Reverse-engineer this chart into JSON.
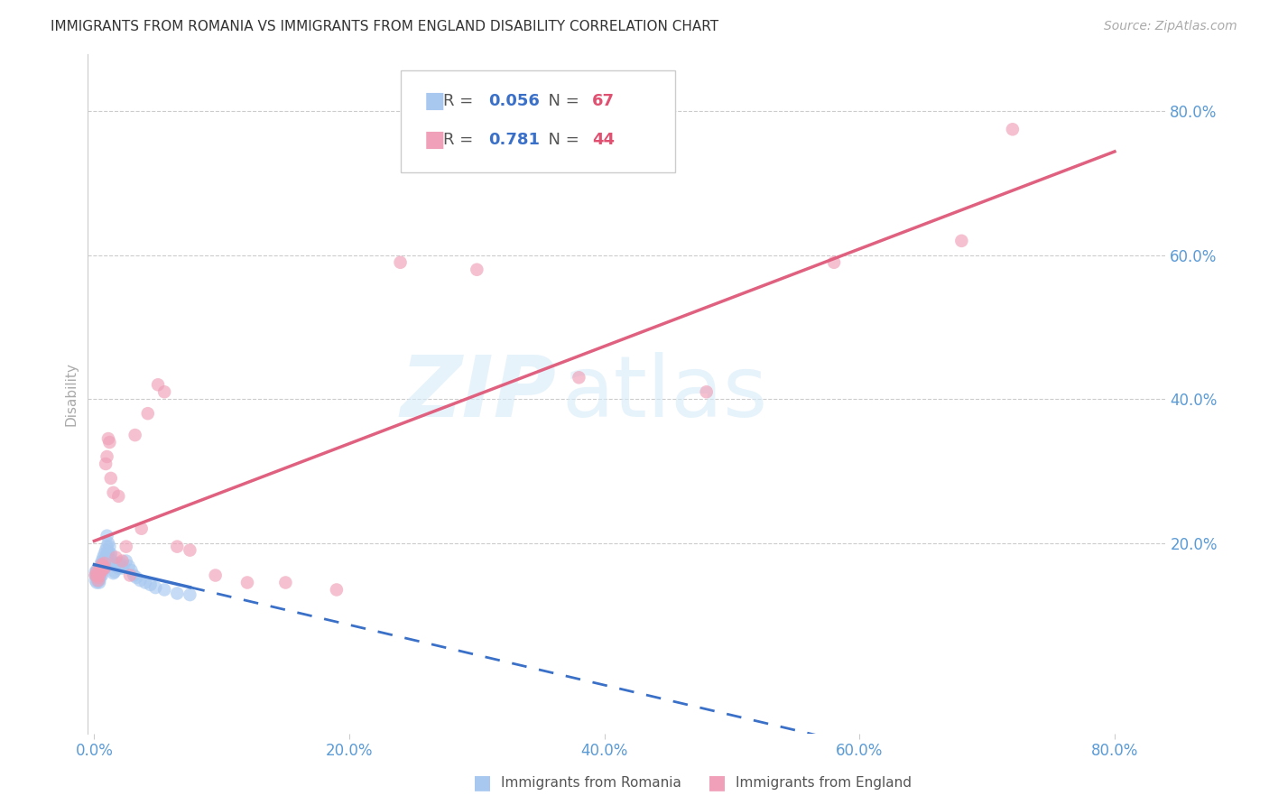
{
  "title": "IMMIGRANTS FROM ROMANIA VS IMMIGRANTS FROM ENGLAND DISABILITY CORRELATION CHART",
  "source": "Source: ZipAtlas.com",
  "tick_color": "#5b9bd5",
  "ylabel": "Disability",
  "ylabel_color": "#aaaaaa",
  "x_tick_labels": [
    "0.0%",
    "20.0%",
    "40.0%",
    "60.0%",
    "80.0%"
  ],
  "y_tick_labels": [
    "20.0%",
    "40.0%",
    "60.0%",
    "80.0%"
  ],
  "x_tick_positions": [
    0.0,
    0.2,
    0.4,
    0.6,
    0.8
  ],
  "y_tick_positions": [
    0.2,
    0.4,
    0.6,
    0.8
  ],
  "xlim": [
    -0.005,
    0.84
  ],
  "ylim": [
    -0.065,
    0.88
  ],
  "romania_color": "#a8c8f0",
  "england_color": "#f0a0b8",
  "romania_line_color": "#3a70c8",
  "england_line_color": "#e06080",
  "romania_label": "Immigrants from Romania",
  "england_label": "Immigrants from England",
  "romania_R": "0.056",
  "romania_N": "67",
  "england_R": "0.781",
  "england_N": "44",
  "watermark_zip": "ZIP",
  "watermark_atlas": "atlas",
  "romania_x": [
    0.001,
    0.001,
    0.001,
    0.002,
    0.002,
    0.002,
    0.002,
    0.002,
    0.003,
    0.003,
    0.003,
    0.003,
    0.003,
    0.004,
    0.004,
    0.004,
    0.004,
    0.004,
    0.005,
    0.005,
    0.005,
    0.005,
    0.006,
    0.006,
    0.006,
    0.006,
    0.007,
    0.007,
    0.007,
    0.008,
    0.008,
    0.008,
    0.009,
    0.009,
    0.009,
    0.01,
    0.01,
    0.01,
    0.011,
    0.011,
    0.012,
    0.012,
    0.013,
    0.013,
    0.014,
    0.015,
    0.015,
    0.016,
    0.017,
    0.018,
    0.019,
    0.02,
    0.021,
    0.022,
    0.023,
    0.025,
    0.027,
    0.029,
    0.031,
    0.033,
    0.036,
    0.04,
    0.044,
    0.048,
    0.055,
    0.065,
    0.075
  ],
  "romania_y": [
    0.155,
    0.16,
    0.148,
    0.152,
    0.145,
    0.158,
    0.16,
    0.162,
    0.155,
    0.15,
    0.148,
    0.152,
    0.157,
    0.162,
    0.155,
    0.15,
    0.145,
    0.148,
    0.17,
    0.165,
    0.158,
    0.155,
    0.175,
    0.168,
    0.162,
    0.155,
    0.18,
    0.172,
    0.165,
    0.185,
    0.175,
    0.165,
    0.19,
    0.178,
    0.168,
    0.21,
    0.195,
    0.182,
    0.2,
    0.188,
    0.195,
    0.182,
    0.185,
    0.172,
    0.175,
    0.17,
    0.158,
    0.16,
    0.168,
    0.172,
    0.165,
    0.168,
    0.172,
    0.165,
    0.168,
    0.175,
    0.168,
    0.162,
    0.155,
    0.152,
    0.148,
    0.145,
    0.142,
    0.138,
    0.135,
    0.13,
    0.128
  ],
  "england_x": [
    0.001,
    0.002,
    0.002,
    0.003,
    0.003,
    0.004,
    0.004,
    0.005,
    0.005,
    0.006,
    0.006,
    0.007,
    0.007,
    0.008,
    0.008,
    0.009,
    0.01,
    0.011,
    0.012,
    0.013,
    0.015,
    0.017,
    0.019,
    0.022,
    0.025,
    0.028,
    0.032,
    0.037,
    0.042,
    0.05,
    0.055,
    0.065,
    0.075,
    0.095,
    0.12,
    0.15,
    0.19,
    0.24,
    0.3,
    0.38,
    0.48,
    0.58,
    0.68,
    0.72
  ],
  "england_y": [
    0.155,
    0.155,
    0.16,
    0.152,
    0.148,
    0.155,
    0.16,
    0.16,
    0.165,
    0.162,
    0.17,
    0.165,
    0.168,
    0.172,
    0.165,
    0.31,
    0.32,
    0.345,
    0.34,
    0.29,
    0.27,
    0.18,
    0.265,
    0.175,
    0.195,
    0.155,
    0.35,
    0.22,
    0.38,
    0.42,
    0.41,
    0.195,
    0.19,
    0.155,
    0.145,
    0.145,
    0.135,
    0.59,
    0.58,
    0.43,
    0.41,
    0.59,
    0.62,
    0.775
  ]
}
